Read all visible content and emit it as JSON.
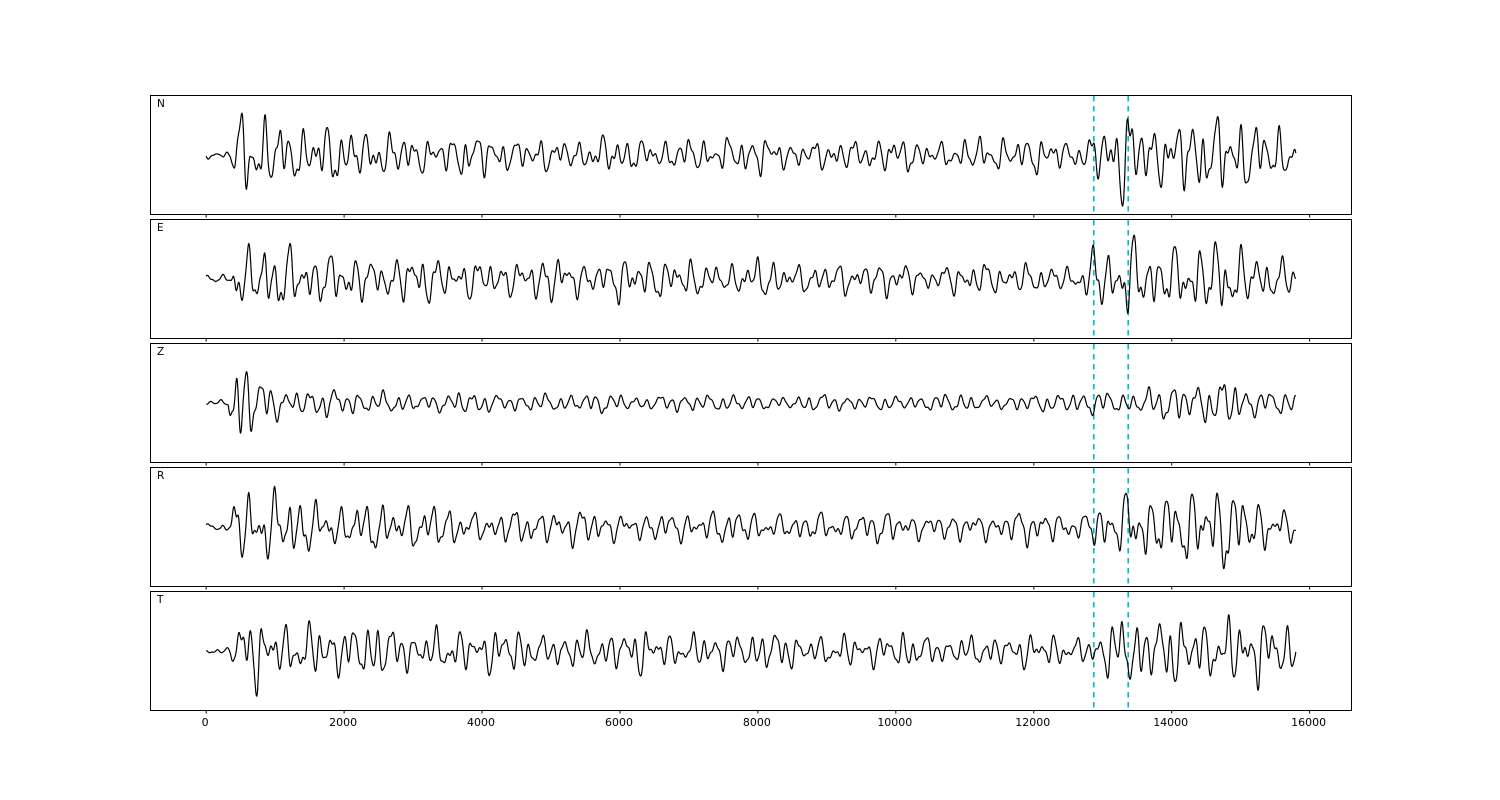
{
  "figure": {
    "background": "#ffffff",
    "title": ""
  },
  "chart_data": {
    "type": "line",
    "title": "",
    "xlabel": "",
    "ylabel": "",
    "grid": false,
    "legend": "none",
    "xlim": [
      -800,
      16600
    ],
    "xticks": [
      0,
      2000,
      4000,
      6000,
      8000,
      10000,
      12000,
      14000,
      16000
    ],
    "trace_range": [
      0,
      15800
    ],
    "pick_lines": [
      12870,
      13370
    ],
    "colors": {
      "trace": "#000000",
      "pick": "#00bfbf",
      "axis": "#000000"
    },
    "frequencies": [
      0.0055,
      0.0032,
      0.0085,
      0.0018,
      0.0125
    ],
    "freq_amps": [
      1,
      0.65,
      0.5,
      0.3,
      0.26
    ],
    "panels": [
      {
        "label": "N",
        "seed": 11,
        "amp": 52,
        "envelope": [
          [
            0,
            0.06
          ],
          [
            350,
            0.08
          ],
          [
            420,
            0.8
          ],
          [
            700,
            0.7
          ],
          [
            1100,
            0.75
          ],
          [
            1600,
            0.5
          ],
          [
            2200,
            0.45
          ],
          [
            3000,
            0.4
          ],
          [
            4500,
            0.33
          ],
          [
            6000,
            0.3
          ],
          [
            7500,
            0.33
          ],
          [
            9000,
            0.28
          ],
          [
            10500,
            0.3
          ],
          [
            12000,
            0.32
          ],
          [
            12600,
            0.3
          ],
          [
            12900,
            0.55
          ],
          [
            13100,
            0.5
          ],
          [
            13350,
            0.9
          ],
          [
            13600,
            0.6
          ],
          [
            14000,
            0.55
          ],
          [
            14400,
            0.8
          ],
          [
            14750,
            1.0
          ],
          [
            15000,
            0.7
          ],
          [
            15300,
            0.45
          ],
          [
            15600,
            0.5
          ],
          [
            15800,
            0.35
          ]
        ]
      },
      {
        "label": "E",
        "seed": 23,
        "amp": 50,
        "envelope": [
          [
            0,
            0.06
          ],
          [
            350,
            0.08
          ],
          [
            430,
            0.7
          ],
          [
            800,
            0.8
          ],
          [
            1200,
            0.6
          ],
          [
            1800,
            0.45
          ],
          [
            2500,
            0.5
          ],
          [
            3200,
            0.42
          ],
          [
            4500,
            0.38
          ],
          [
            6000,
            0.42
          ],
          [
            7500,
            0.35
          ],
          [
            9000,
            0.32
          ],
          [
            10500,
            0.3
          ],
          [
            12000,
            0.3
          ],
          [
            12700,
            0.28
          ],
          [
            12900,
            0.6
          ],
          [
            13150,
            0.45
          ],
          [
            13370,
            1.0
          ],
          [
            13650,
            0.8
          ],
          [
            14000,
            0.55
          ],
          [
            14400,
            0.7
          ],
          [
            14800,
            0.75
          ],
          [
            15100,
            0.5
          ],
          [
            15400,
            0.6
          ],
          [
            15800,
            0.35
          ]
        ]
      },
      {
        "label": "Z",
        "seed": 37,
        "amp": 52,
        "envelope": [
          [
            0,
            0.05
          ],
          [
            320,
            0.06
          ],
          [
            390,
            1.0
          ],
          [
            520,
            0.85
          ],
          [
            700,
            0.5
          ],
          [
            1100,
            0.35
          ],
          [
            1800,
            0.24
          ],
          [
            3000,
            0.2
          ],
          [
            6000,
            0.17
          ],
          [
            9000,
            0.15
          ],
          [
            12000,
            0.17
          ],
          [
            13000,
            0.22
          ],
          [
            13600,
            0.3
          ],
          [
            14300,
            0.35
          ],
          [
            14800,
            0.5
          ],
          [
            15100,
            0.32
          ],
          [
            15500,
            0.28
          ],
          [
            15800,
            0.2
          ]
        ]
      },
      {
        "label": "R",
        "seed": 51,
        "amp": 50,
        "envelope": [
          [
            0,
            0.06
          ],
          [
            350,
            0.08
          ],
          [
            430,
            0.75
          ],
          [
            800,
            0.65
          ],
          [
            1300,
            0.6
          ],
          [
            2000,
            0.5
          ],
          [
            2600,
            0.45
          ],
          [
            3500,
            0.38
          ],
          [
            5000,
            0.33
          ],
          [
            6500,
            0.3
          ],
          [
            8000,
            0.3
          ],
          [
            9500,
            0.28
          ],
          [
            11000,
            0.28
          ],
          [
            12200,
            0.3
          ],
          [
            12750,
            0.28
          ],
          [
            12950,
            0.55
          ],
          [
            13200,
            0.45
          ],
          [
            13400,
            0.95
          ],
          [
            13700,
            0.6
          ],
          [
            14100,
            0.55
          ],
          [
            14500,
            0.8
          ],
          [
            14800,
            1.0
          ],
          [
            15100,
            0.6
          ],
          [
            15400,
            0.5
          ],
          [
            15800,
            0.35
          ]
        ]
      },
      {
        "label": "T",
        "seed": 67,
        "amp": 46,
        "envelope": [
          [
            0,
            0.06
          ],
          [
            350,
            0.08
          ],
          [
            450,
            0.6
          ],
          [
            800,
            0.75
          ],
          [
            1400,
            0.6
          ],
          [
            2200,
            0.55
          ],
          [
            3000,
            0.5
          ],
          [
            4000,
            0.45
          ],
          [
            5000,
            0.4
          ],
          [
            6500,
            0.42
          ],
          [
            8000,
            0.38
          ],
          [
            9500,
            0.35
          ],
          [
            11000,
            0.33
          ],
          [
            12200,
            0.32
          ],
          [
            12800,
            0.35
          ],
          [
            13000,
            0.5
          ],
          [
            13370,
            0.85
          ],
          [
            13700,
            0.6
          ],
          [
            14200,
            0.65
          ],
          [
            14700,
            0.8
          ],
          [
            15100,
            0.7
          ],
          [
            15400,
            0.75
          ],
          [
            15800,
            0.4
          ]
        ]
      }
    ]
  }
}
